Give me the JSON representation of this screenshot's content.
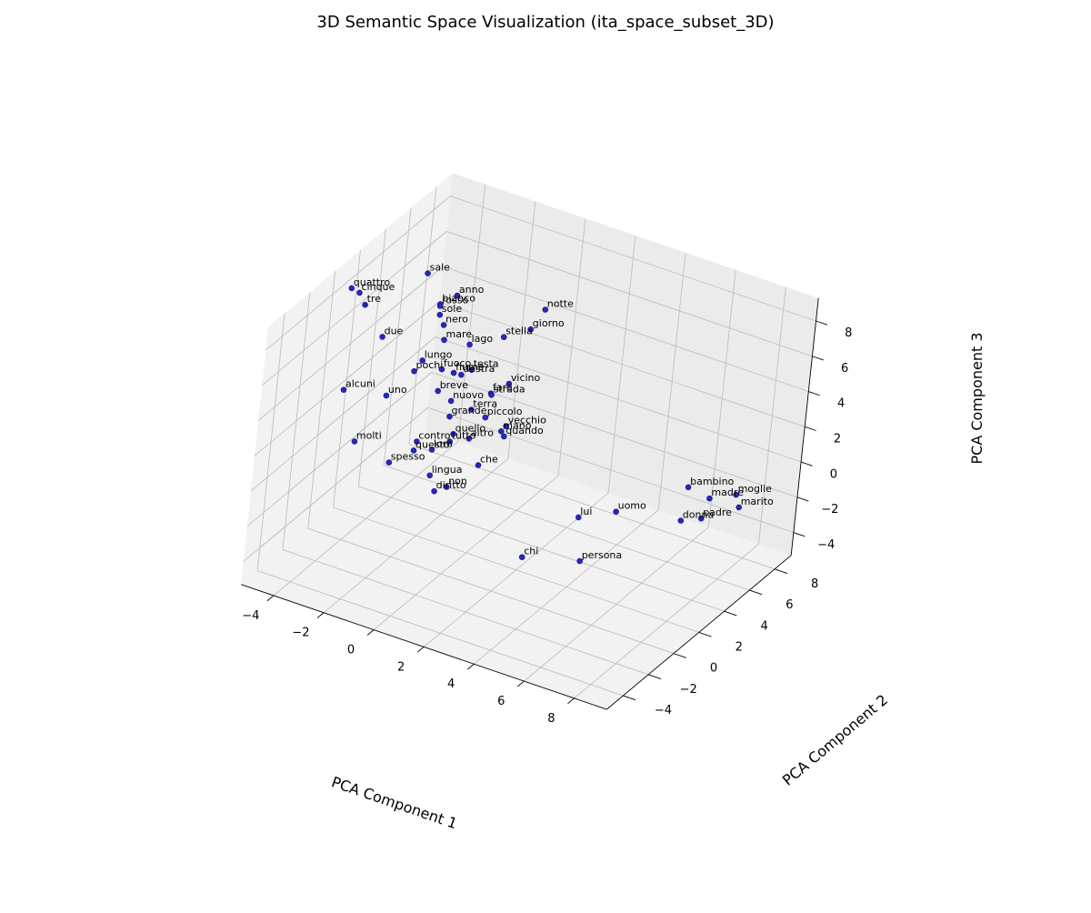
{
  "chart_data": {
    "type": "scatter",
    "title": "3D Semantic Space Visualization (ita_space_subset_3D)",
    "xlabel": "PCA Component 1",
    "ylabel": "PCA Component 2",
    "zlabel": "PCA Component 3",
    "x_ticks": [
      "−4",
      "−2",
      "0",
      "2",
      "4",
      "6",
      "8"
    ],
    "y_ticks": [
      "−4",
      "−2",
      "0",
      "2",
      "4",
      "6",
      "8"
    ],
    "z_ticks": [
      "−4",
      "−2",
      "0",
      "2",
      "4",
      "6",
      "8"
    ],
    "grid": true,
    "point_color": "#2727b8",
    "points": [
      {
        "label": "notte",
        "x": 0.32,
        "y": 5.93,
        "z": 6.3
      },
      {
        "label": "giorno",
        "x": -0.07,
        "y": 5.73,
        "z": 5.11
      },
      {
        "label": "stella",
        "x": -0.87,
        "y": 5.27,
        "z": 4.56
      },
      {
        "label": "anno",
        "x": -2.94,
        "y": 5.5,
        "z": 5.77
      },
      {
        "label": "sale",
        "x": -4.13,
        "y": 5.43,
        "z": 6.5
      },
      {
        "label": "bianco",
        "x": -3.38,
        "y": 5.11,
        "z": 5.3
      },
      {
        "label": "rosso",
        "x": -3.36,
        "y": 5.06,
        "z": 5.24
      },
      {
        "label": "sole",
        "x": -3.28,
        "y": 4.94,
        "z": 4.85
      },
      {
        "label": "nero",
        "x": -3.0,
        "y": 4.74,
        "z": 4.53
      },
      {
        "label": "lago",
        "x": -2.03,
        "y": 4.98,
        "z": 3.75
      },
      {
        "label": "mare",
        "x": -2.85,
        "y": 4.57,
        "z": 3.86
      },
      {
        "label": "vicino",
        "x": -0.17,
        "y": 4.57,
        "z": 2.67
      },
      {
        "label": "testa",
        "x": -1.64,
        "y": 4.5,
        "z": 2.79
      },
      {
        "label": "fiume",
        "x": -2.41,
        "y": 4.72,
        "z": 2.11
      },
      {
        "label": "destra",
        "x": -1.92,
        "y": 4.28,
        "z": 2.5
      },
      {
        "label": "fare",
        "x": -0.66,
        "y": 4.19,
        "z": 2.11
      },
      {
        "label": "strada",
        "x": -0.61,
        "y": 4.14,
        "z": 2.08
      },
      {
        "label": "fuoco",
        "x": -2.59,
        "y": 4.05,
        "z": 2.63
      },
      {
        "label": "quattro",
        "x": -6.07,
        "y": 3.32,
        "z": 5.98
      },
      {
        "label": "cinque",
        "x": -5.8,
        "y": 3.44,
        "z": 5.78
      },
      {
        "label": "tre",
        "x": -5.32,
        "y": 2.95,
        "z": 5.62
      },
      {
        "label": "due",
        "x": -4.54,
        "y": 2.99,
        "z": 4.16
      },
      {
        "label": "lungo",
        "x": -3.32,
        "y": 3.94,
        "z": 2.84
      },
      {
        "label": "pochi",
        "x": -3.33,
        "y": 3.33,
        "z": 2.59
      },
      {
        "label": "breve",
        "x": -2.28,
        "y": 3.22,
        "z": 2.05
      },
      {
        "label": "nuovo",
        "x": -1.8,
        "y": 3.36,
        "z": 1.63
      },
      {
        "label": "terra",
        "x": -1.07,
        "y": 3.56,
        "z": 1.37
      },
      {
        "label": "piccolo",
        "x": -0.56,
        "y": 3.7,
        "z": 1.09
      },
      {
        "label": "vecchio",
        "x": 0.21,
        "y": 3.85,
        "z": 0.88
      },
      {
        "label": "mano",
        "x": 0.18,
        "y": 3.54,
        "z": 0.76
      },
      {
        "label": "quando",
        "x": 0.33,
        "y": 3.48,
        "z": 0.58
      },
      {
        "label": "grande",
        "x": -1.63,
        "y": 3.0,
        "z": 1.04
      },
      {
        "label": "quello",
        "x": -1.27,
        "y": 2.67,
        "z": 0.42
      },
      {
        "label": "altro",
        "x": -0.73,
        "y": 2.85,
        "z": 0.32
      },
      {
        "label": "tutto",
        "x": -1.3,
        "y": 2.5,
        "z": 0.08
      },
      {
        "label": "che",
        "x": -0.09,
        "y": 2.46,
        "z": -0.65
      },
      {
        "label": "uno",
        "x": -3.71,
        "y": 2.0,
        "z": 1.82
      },
      {
        "label": "alcuni",
        "x": -5.01,
        "y": 1.17,
        "z": 2.01
      },
      {
        "label": "contro",
        "x": -2.34,
        "y": 1.98,
        "z": -0.11
      },
      {
        "label": "loro",
        "x": -1.75,
        "y": 2.03,
        "z": -0.31
      },
      {
        "label": "questo",
        "x": -2.32,
        "y": 1.75,
        "z": -0.47
      },
      {
        "label": "lingua",
        "x": -1.51,
        "y": 1.55,
        "z": -1.37
      },
      {
        "label": "non",
        "x": -0.84,
        "y": 1.6,
        "z": -1.73
      },
      {
        "label": "diritto",
        "x": -1.19,
        "y": 1.36,
        "z": -2.0
      },
      {
        "label": "molti",
        "x": -4.21,
        "y": 0.78,
        "z": -0.29
      },
      {
        "label": "spesso",
        "x": -2.89,
        "y": 0.99,
        "z": -0.97
      },
      {
        "label": "chi",
        "x": 2.51,
        "y": 1.25,
        "z": -3.88
      },
      {
        "label": "persona",
        "x": 4.53,
        "y": 1.75,
        "z": -3.42
      },
      {
        "label": "lui",
        "x": 3.85,
        "y": 2.77,
        "z": -1.88
      },
      {
        "label": "uomo",
        "x": 5.02,
        "y": 3.34,
        "z": -1.33
      },
      {
        "label": "donna",
        "x": 7.25,
        "y": 4.02,
        "z": -1.16
      },
      {
        "label": "padre",
        "x": 7.91,
        "y": 4.28,
        "z": -0.88
      },
      {
        "label": "bambino",
        "x": 7.09,
        "y": 4.73,
        "z": 0.23
      },
      {
        "label": "madre",
        "x": 7.94,
        "y": 4.75,
        "z": -0.01
      },
      {
        "label": "moglie",
        "x": 8.6,
        "y": 5.54,
        "z": 0.05
      },
      {
        "label": "marito",
        "x": 8.91,
        "y": 5.2,
        "z": -0.31
      }
    ]
  }
}
